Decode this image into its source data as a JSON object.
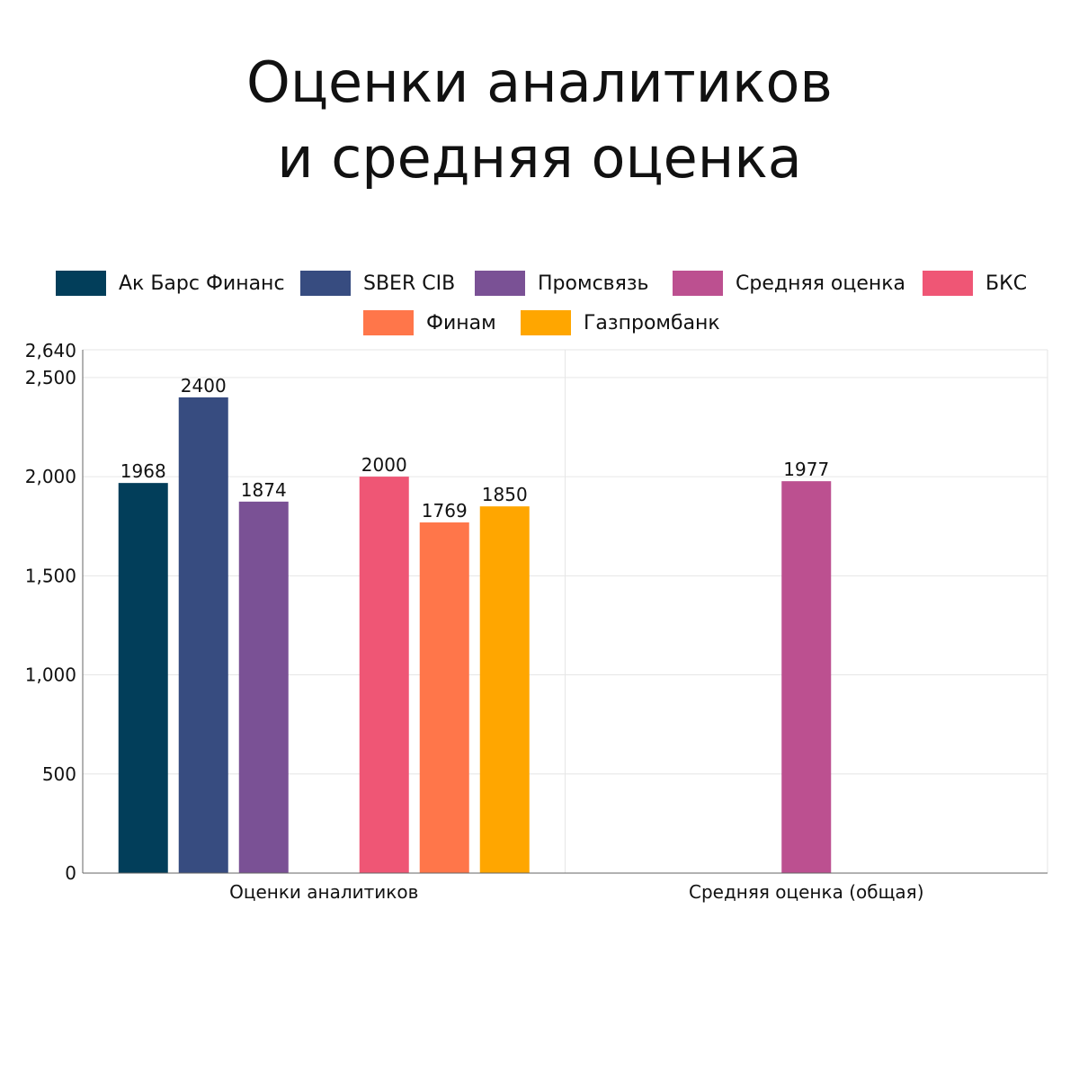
{
  "title_lines": [
    "Оценки аналитиков",
    "и средняя оценка"
  ],
  "chart_data": {
    "type": "bar",
    "categories": [
      "Оценки аналитиков",
      "Средняя оценка (общая)"
    ],
    "series": [
      {
        "name": "Ак Барс Финанс",
        "color": "#023e5a",
        "values": [
          1968,
          null
        ]
      },
      {
        "name": "SBER CIB",
        "color": "#374c80",
        "values": [
          2400,
          null
        ]
      },
      {
        "name": "Промсвязь",
        "color": "#7a5195",
        "values": [
          1874,
          null
        ]
      },
      {
        "name": "Средняя оценка",
        "color": "#bc5090",
        "values": [
          null,
          1977
        ]
      },
      {
        "name": "БКС",
        "color": "#ef5675",
        "values": [
          2000,
          null
        ]
      },
      {
        "name": "Финам",
        "color": "#ff764a",
        "values": [
          1769,
          null
        ]
      },
      {
        "name": "Газпромбанк",
        "color": "#ffa600",
        "values": [
          1850,
          null
        ]
      }
    ],
    "ylim": [
      0,
      2640
    ],
    "y_ticks": [
      {
        "value": 0,
        "label": "0"
      },
      {
        "value": 500,
        "label": "500"
      },
      {
        "value": 1000,
        "label": "1,000"
      },
      {
        "value": 1500,
        "label": "1,500"
      },
      {
        "value": 2000,
        "label": "2,000"
      },
      {
        "value": 2500,
        "label": "2,500"
      },
      {
        "value": 2640,
        "label": "2,640"
      }
    ],
    "grid": true,
    "legend_position": "top-center",
    "data_labels": true
  }
}
